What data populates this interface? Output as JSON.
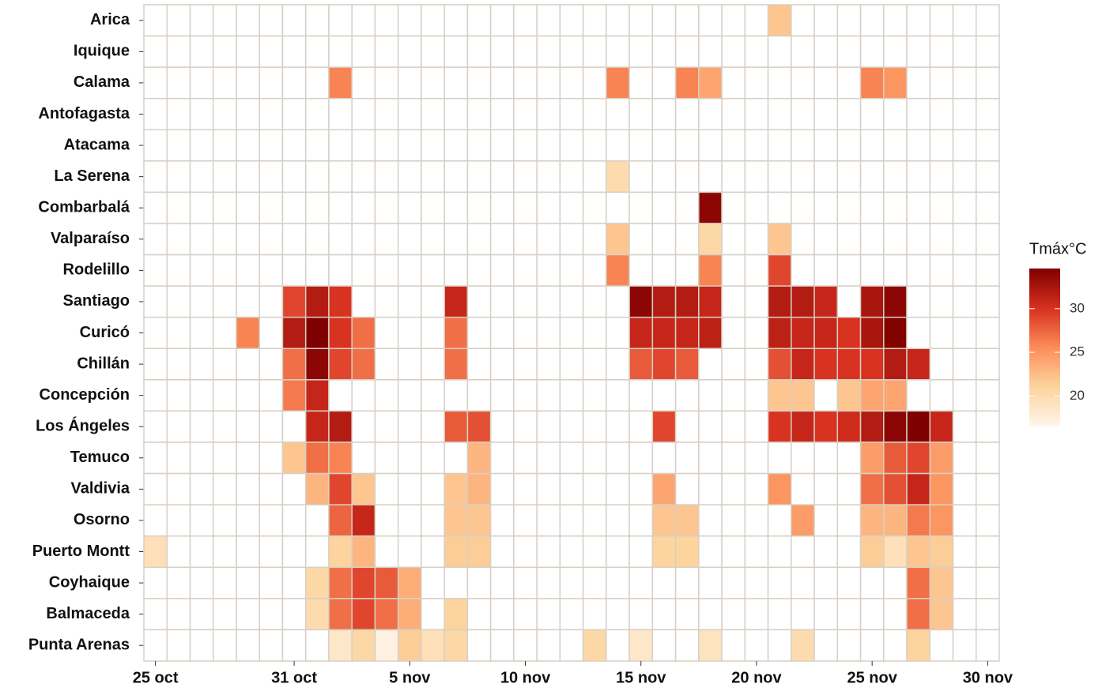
{
  "chart_data": {
    "type": "heatmap",
    "x": [
      "25 oct",
      null,
      null,
      null,
      null,
      null,
      "31 oct",
      null,
      null,
      null,
      null,
      "5 nov",
      null,
      null,
      null,
      null,
      "10 nov",
      null,
      null,
      null,
      null,
      "15 nov",
      null,
      null,
      null,
      null,
      "20 nov",
      null,
      null,
      null,
      null,
      "25 nov",
      null,
      null,
      null,
      null,
      "30 nov"
    ],
    "y": [
      "Arica",
      "Iquique",
      "Calama",
      "Antofagasta",
      "Atacama",
      "La Serena",
      "Combarbalá",
      "Valparaíso",
      "Rodelillo",
      "Santiago",
      "Curicó",
      "Chillán",
      "Concepción",
      "Los Ángeles",
      "Temuco",
      "Valdivia",
      "Osorno",
      "Puerto Montt",
      "Coyhaique",
      "Balmaceda",
      "Punta Arenas"
    ],
    "values": [
      [
        null,
        null,
        null,
        null,
        null,
        null,
        null,
        null,
        null,
        null,
        null,
        null,
        null,
        null,
        null,
        null,
        null,
        null,
        null,
        null,
        null,
        null,
        null,
        null,
        null,
        null,
        null,
        22,
        null,
        null,
        null,
        null,
        null,
        null,
        null,
        null,
        null
      ],
      [
        null,
        null,
        null,
        null,
        null,
        null,
        null,
        null,
        null,
        null,
        null,
        null,
        null,
        null,
        null,
        null,
        null,
        null,
        null,
        null,
        null,
        null,
        null,
        null,
        null,
        null,
        null,
        null,
        null,
        null,
        null,
        null,
        null,
        null,
        null,
        null,
        null
      ],
      [
        null,
        null,
        null,
        null,
        null,
        null,
        null,
        null,
        26,
        null,
        null,
        null,
        null,
        null,
        null,
        null,
        null,
        null,
        null,
        null,
        26,
        null,
        null,
        26,
        24,
        null,
        null,
        null,
        null,
        null,
        null,
        26,
        25,
        null,
        null,
        null,
        null
      ],
      [
        null,
        null,
        null,
        null,
        null,
        null,
        null,
        null,
        null,
        null,
        null,
        null,
        null,
        null,
        null,
        null,
        null,
        null,
        null,
        null,
        null,
        null,
        null,
        null,
        null,
        null,
        null,
        null,
        null,
        null,
        null,
        null,
        null,
        null,
        null,
        null,
        null
      ],
      [
        null,
        null,
        null,
        null,
        null,
        null,
        null,
        null,
        null,
        null,
        null,
        null,
        null,
        null,
        null,
        null,
        null,
        null,
        null,
        null,
        null,
        null,
        null,
        null,
        null,
        null,
        null,
        null,
        null,
        null,
        null,
        null,
        null,
        null,
        null,
        null,
        null
      ],
      [
        null,
        null,
        null,
        null,
        null,
        null,
        null,
        null,
        null,
        null,
        null,
        null,
        null,
        null,
        null,
        null,
        null,
        null,
        null,
        null,
        20,
        null,
        null,
        null,
        null,
        null,
        null,
        null,
        null,
        null,
        null,
        null,
        null,
        null,
        null,
        null,
        null
      ],
      [
        null,
        null,
        null,
        null,
        null,
        null,
        null,
        null,
        null,
        null,
        null,
        null,
        null,
        null,
        null,
        null,
        null,
        null,
        null,
        null,
        null,
        null,
        null,
        null,
        34,
        null,
        null,
        null,
        null,
        null,
        null,
        null,
        null,
        null,
        null,
        null,
        null
      ],
      [
        null,
        null,
        null,
        null,
        null,
        null,
        null,
        null,
        null,
        null,
        null,
        null,
        null,
        null,
        null,
        null,
        null,
        null,
        null,
        null,
        22,
        null,
        null,
        null,
        20.5,
        null,
        null,
        22,
        null,
        null,
        null,
        null,
        null,
        null,
        null,
        null,
        null
      ],
      [
        null,
        null,
        null,
        null,
        null,
        null,
        null,
        null,
        null,
        null,
        null,
        null,
        null,
        null,
        null,
        null,
        null,
        null,
        null,
        null,
        26,
        null,
        null,
        null,
        26,
        null,
        null,
        29,
        null,
        null,
        null,
        null,
        null,
        null,
        null,
        null,
        null
      ],
      [
        null,
        null,
        null,
        null,
        null,
        null,
        29,
        32,
        30,
        null,
        null,
        null,
        null,
        31,
        null,
        null,
        null,
        null,
        null,
        null,
        null,
        34,
        32,
        32,
        31,
        null,
        null,
        32,
        32,
        31,
        null,
        32.5,
        34,
        null,
        null,
        null,
        null
      ],
      [
        null,
        null,
        null,
        null,
        26,
        null,
        32,
        35,
        30,
        27,
        null,
        null,
        null,
        27,
        null,
        null,
        null,
        null,
        null,
        null,
        null,
        31,
        31,
        31,
        31.5,
        null,
        null,
        31.5,
        31,
        31,
        30,
        32.5,
        34.5,
        null,
        null,
        null,
        null
      ],
      [
        null,
        null,
        null,
        null,
        null,
        null,
        27,
        34,
        29,
        27,
        null,
        null,
        null,
        27,
        null,
        null,
        null,
        null,
        null,
        null,
        null,
        28,
        29,
        28,
        null,
        null,
        null,
        28.5,
        31,
        30,
        30,
        30,
        32,
        31,
        null,
        null,
        null
      ],
      [
        null,
        null,
        null,
        null,
        null,
        null,
        26.5,
        31,
        null,
        null,
        null,
        null,
        null,
        null,
        null,
        null,
        null,
        null,
        null,
        null,
        null,
        null,
        null,
        null,
        null,
        null,
        null,
        22,
        22,
        null,
        22,
        24,
        24,
        null,
        null,
        null,
        null
      ],
      [
        null,
        null,
        null,
        null,
        null,
        null,
        null,
        31,
        32,
        null,
        null,
        null,
        null,
        28,
        28.5,
        null,
        null,
        null,
        null,
        null,
        null,
        null,
        29,
        null,
        null,
        null,
        null,
        30,
        31,
        30,
        30.5,
        32,
        34,
        35,
        31,
        null,
        null
      ],
      [
        null,
        null,
        null,
        null,
        null,
        null,
        22,
        27,
        26,
        null,
        null,
        null,
        null,
        null,
        23,
        null,
        null,
        null,
        null,
        null,
        null,
        null,
        null,
        null,
        null,
        null,
        null,
        null,
        null,
        null,
        null,
        24.5,
        28,
        29,
        24.5,
        null,
        null
      ],
      [
        null,
        null,
        null,
        null,
        null,
        null,
        null,
        23,
        29,
        22,
        null,
        null,
        null,
        22,
        23,
        null,
        null,
        null,
        null,
        null,
        null,
        null,
        24,
        null,
        null,
        null,
        null,
        25,
        null,
        null,
        null,
        27,
        28.5,
        31,
        25,
        null,
        null
      ],
      [
        null,
        null,
        null,
        null,
        null,
        null,
        null,
        null,
        27.5,
        31,
        null,
        null,
        null,
        22,
        22,
        null,
        null,
        null,
        null,
        null,
        null,
        null,
        22,
        22,
        null,
        null,
        null,
        null,
        24.5,
        null,
        null,
        23,
        23,
        26.5,
        25,
        null,
        null
      ],
      [
        19.5,
        null,
        null,
        null,
        null,
        null,
        null,
        null,
        21,
        23,
        null,
        null,
        null,
        21.5,
        21.5,
        null,
        null,
        null,
        null,
        null,
        null,
        null,
        21,
        21,
        null,
        null,
        null,
        null,
        null,
        null,
        null,
        21.5,
        19.5,
        22,
        21.5,
        null,
        null
      ],
      [
        null,
        null,
        null,
        null,
        null,
        null,
        null,
        20.5,
        27,
        29,
        28,
        23.5,
        null,
        null,
        null,
        null,
        null,
        null,
        null,
        null,
        null,
        null,
        null,
        null,
        null,
        null,
        null,
        null,
        null,
        null,
        null,
        null,
        null,
        27,
        22,
        null,
        null
      ],
      [
        null,
        null,
        null,
        null,
        null,
        null,
        null,
        20,
        27,
        29,
        27,
        23.5,
        null,
        21,
        null,
        null,
        null,
        null,
        null,
        null,
        null,
        null,
        null,
        null,
        null,
        null,
        null,
        null,
        null,
        null,
        null,
        null,
        null,
        27,
        22,
        null,
        null
      ],
      [
        null,
        null,
        null,
        null,
        null,
        null,
        null,
        null,
        18.5,
        20.5,
        17,
        21.5,
        19.5,
        20.5,
        null,
        null,
        null,
        null,
        null,
        20.5,
        null,
        18.5,
        null,
        null,
        19,
        null,
        null,
        null,
        20,
        null,
        null,
        null,
        null,
        21,
        null,
        null,
        null
      ]
    ],
    "legend_title": "Tmáx°C",
    "zlim": [
      16.5,
      34.6
    ],
    "zticks": [
      20,
      25,
      30
    ],
    "colors": [
      "#fff5eb",
      "#fdd49e",
      "#fc8d59",
      "#d7301f",
      "#7f0000"
    ],
    "grid_color": "#d8cfc4"
  }
}
